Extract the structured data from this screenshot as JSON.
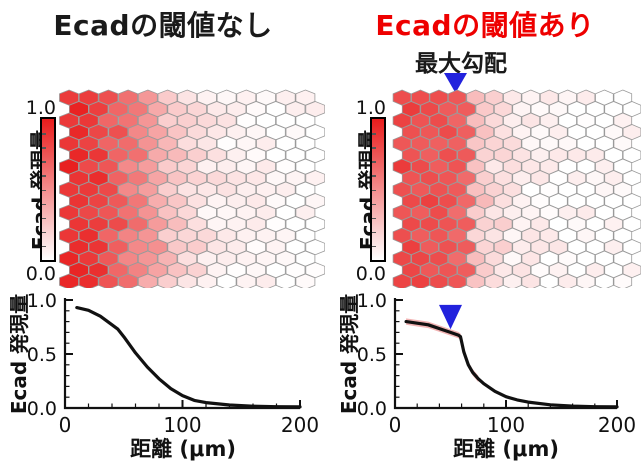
{
  "figure": {
    "left_panel": {
      "title": "Ecadの閾値なし",
      "title_color": "#1a1a1a"
    },
    "right_panel": {
      "title": "Ecadの閾値あり",
      "title_color": "#ee0000",
      "gradient_annotation": "最大勾配",
      "marker_color": "#2222dd"
    },
    "colorbar": {
      "label": "Ecad 発現量",
      "max": "1.0",
      "min": "0.0",
      "max_color": "#e81c1c",
      "min_color": "#ffffff"
    }
  },
  "chart_data": [
    {
      "type": "heatmap",
      "panel": "left",
      "title": "Ecadの閾値なし",
      "layout": "hex-grid",
      "columns": 13,
      "rows": 17,
      "x_range_um": [
        0,
        200
      ],
      "column_values": [
        0.93,
        0.86,
        0.74,
        0.58,
        0.42,
        0.28,
        0.17,
        0.1,
        0.06,
        0.04,
        0.025,
        0.015,
        0.01
      ],
      "noise_amplitude": 0.07,
      "colormap": {
        "0.0": "#ffffff",
        "1.0": "#e81c1c"
      },
      "legend": {
        "label": "Ecad 発現量",
        "max": 1.0,
        "min": 0.0
      }
    },
    {
      "type": "heatmap",
      "panel": "right",
      "title": "Ecadの閾値あり",
      "layout": "hex-grid",
      "columns": 13,
      "rows": 17,
      "x_range_um": [
        0,
        200
      ],
      "column_values": [
        0.8,
        0.77,
        0.74,
        0.7,
        0.24,
        0.15,
        0.09,
        0.06,
        0.04,
        0.03,
        0.02,
        0.015,
        0.01
      ],
      "noise_amplitude": 0.07,
      "threshold_boundary_um": 55,
      "boundary_annotation": "最大勾配",
      "colormap": {
        "0.0": "#ffffff",
        "1.0": "#e81c1c"
      },
      "legend": {
        "label": "Ecad 発現量",
        "max": 1.0,
        "min": 0.0
      }
    },
    {
      "type": "line",
      "panel": "left",
      "xlabel": "距離 (μm)",
      "ylabel": "Ecad 発現量",
      "xlim": [
        0,
        200
      ],
      "ylim": [
        0,
        1
      ],
      "xticks": [
        0,
        100,
        200
      ],
      "xtick_labels": [
        "0",
        "100",
        "200"
      ],
      "x_minor_step": 20,
      "yticks": [
        0,
        0.5,
        1
      ],
      "ytick_labels": [
        "0.0",
        "0.5",
        "1.0"
      ],
      "y_minor_step": 0.1,
      "line_color": "#111111",
      "x": [
        10,
        20,
        30,
        40,
        45,
        50,
        60,
        70,
        80,
        90,
        100,
        110,
        120,
        140,
        160,
        180,
        200
      ],
      "y": [
        0.93,
        0.905,
        0.85,
        0.77,
        0.73,
        0.66,
        0.51,
        0.38,
        0.27,
        0.18,
        0.115,
        0.07,
        0.05,
        0.028,
        0.017,
        0.012,
        0.01
      ]
    },
    {
      "type": "line",
      "panel": "right",
      "xlabel": "距離 (μm)",
      "ylabel": "Ecad 発現量",
      "xlim": [
        0,
        200
      ],
      "ylim": [
        0,
        1
      ],
      "xticks": [
        0,
        100,
        200
      ],
      "xtick_labels": [
        "0",
        "100",
        "200"
      ],
      "x_minor_step": 20,
      "yticks": [
        0,
        0.5,
        1
      ],
      "ytick_labels": [
        "0.0",
        "0.5",
        "1.0"
      ],
      "y_minor_step": 0.1,
      "line_color": "#111111",
      "x": [
        10,
        20,
        30,
        40,
        50,
        57,
        59,
        62,
        66,
        70,
        75,
        80,
        90,
        100,
        110,
        120,
        140,
        160,
        180,
        200
      ],
      "y": [
        0.8,
        0.785,
        0.77,
        0.735,
        0.7,
        0.675,
        0.66,
        0.52,
        0.4,
        0.33,
        0.27,
        0.225,
        0.155,
        0.105,
        0.075,
        0.055,
        0.03,
        0.018,
        0.012,
        0.01
      ],
      "marker": {
        "x_um": 50,
        "label": "最大勾配",
        "color": "#2222dd"
      },
      "error_band": {
        "x_range": [
          10,
          75
        ],
        "halfwidth": 0.03,
        "color": "#f0a6a6"
      }
    }
  ]
}
